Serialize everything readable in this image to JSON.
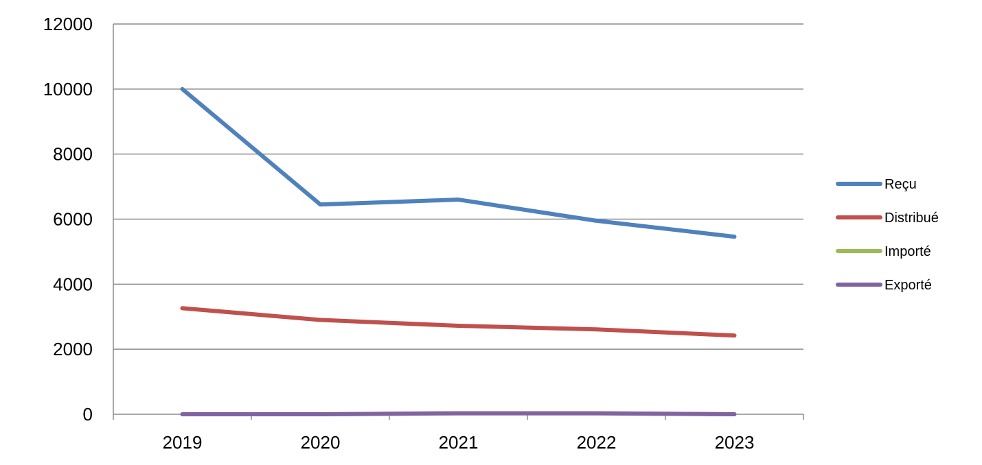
{
  "chart_data": {
    "type": "line",
    "categories": [
      "2019",
      "2020",
      "2021",
      "2022",
      "2023"
    ],
    "ylim": [
      0,
      12000
    ],
    "yticks": [
      0,
      2000,
      4000,
      6000,
      8000,
      10000,
      12000
    ],
    "grid": true,
    "legend_position": "right",
    "series": [
      {
        "name": "Reçu",
        "color": "#4F81BD",
        "values": [
          10000,
          6450,
          6600,
          5950,
          5460
        ]
      },
      {
        "name": "Distribué",
        "color": "#C0504D",
        "values": [
          3260,
          2900,
          2720,
          2610,
          2420
        ]
      },
      {
        "name": "Importé",
        "color": "#9BBB59",
        "values": [
          0,
          0,
          30,
          30,
          0
        ]
      },
      {
        "name": "Exporté",
        "color": "#8064A2",
        "values": [
          0,
          0,
          30,
          30,
          0
        ]
      }
    ]
  }
}
